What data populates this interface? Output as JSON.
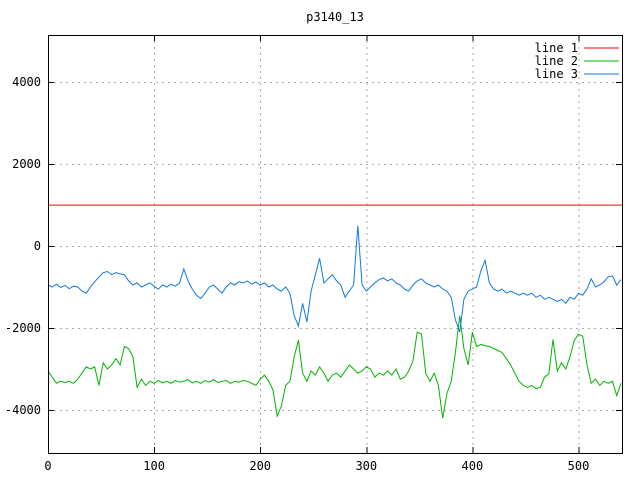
{
  "chart_data": {
    "type": "line",
    "title": "p3140_13",
    "xlabel": "",
    "ylabel": "",
    "xlim": [
      0,
      541
    ],
    "ylim": [
      -5050,
      5150
    ],
    "x_ticks": [
      0,
      100,
      200,
      300,
      400,
      500
    ],
    "y_ticks": [
      -4000,
      -2000,
      0,
      2000,
      4000
    ],
    "grid": true,
    "legend_position": "top-right-inside",
    "x_start": 0,
    "x_step": 4,
    "colors": {
      "background": "#ffffff",
      "border": "#000000",
      "grid": "#aaaaaa",
      "text": "#000000"
    },
    "series": [
      {
        "name": "line 1",
        "color": "#ff0000",
        "constant": 1000
      },
      {
        "name": "line 2",
        "color": "#00b400",
        "values": [
          -3050,
          -3200,
          -3350,
          -3300,
          -3330,
          -3300,
          -3350,
          -3250,
          -3100,
          -2950,
          -3000,
          -2950,
          -3400,
          -2850,
          -3000,
          -2900,
          -2750,
          -2900,
          -2450,
          -2500,
          -2700,
          -3450,
          -3250,
          -3400,
          -3300,
          -3350,
          -3280,
          -3340,
          -3300,
          -3350,
          -3280,
          -3320,
          -3300,
          -3260,
          -3340,
          -3300,
          -3350,
          -3280,
          -3320,
          -3260,
          -3330,
          -3300,
          -3280,
          -3350,
          -3300,
          -3320,
          -3280,
          -3300,
          -3350,
          -3400,
          -3250,
          -3150,
          -3300,
          -3500,
          -4150,
          -3900,
          -3400,
          -3300,
          -2700,
          -2300,
          -3100,
          -3300,
          -3050,
          -3150,
          -2950,
          -3100,
          -3300,
          -3150,
          -3100,
          -3200,
          -3050,
          -2900,
          -3000,
          -3100,
          -3050,
          -2950,
          -3000,
          -3200,
          -3100,
          -3150,
          -3050,
          -3150,
          -3000,
          -3250,
          -3200,
          -3050,
          -2800,
          -2100,
          -2150,
          -3100,
          -3300,
          -3100,
          -3400,
          -4200,
          -3600,
          -3300,
          -2600,
          -1700,
          -2500,
          -2900,
          -2100,
          -2450,
          -2400,
          -2430,
          -2450,
          -2500,
          -2550,
          -2600,
          -2750,
          -2900,
          -3100,
          -3300,
          -3400,
          -3450,
          -3400,
          -3480,
          -3450,
          -3200,
          -3120,
          -2280,
          -3050,
          -2850,
          -3000,
          -2700,
          -2300,
          -2150,
          -2200,
          -2900,
          -3350,
          -3250,
          -3400,
          -3300,
          -3350,
          -3300,
          -3650,
          -3350
        ]
      },
      {
        "name": "line 3",
        "color": "#0f7ae0",
        "values": [
          -950,
          -1000,
          -930,
          -1010,
          -960,
          -1040,
          -980,
          -1000,
          -1100,
          -1150,
          -1000,
          -870,
          -760,
          -650,
          -620,
          -700,
          -650,
          -680,
          -700,
          -850,
          -950,
          -900,
          -1000,
          -950,
          -900,
          -980,
          -1050,
          -950,
          -1000,
          -930,
          -980,
          -900,
          -560,
          -850,
          -1050,
          -1200,
          -1280,
          -1150,
          -1000,
          -950,
          -1050,
          -1150,
          -1000,
          -900,
          -950,
          -870,
          -900,
          -850,
          -930,
          -880,
          -950,
          -900,
          -1000,
          -950,
          -1050,
          -1100,
          -1000,
          -1150,
          -1700,
          -1950,
          -1400,
          -1850,
          -1100,
          -700,
          -300,
          -900,
          -800,
          -700,
          -850,
          -950,
          -1250,
          -1100,
          -950,
          500,
          -950,
          -1100,
          -1000,
          -900,
          -820,
          -780,
          -850,
          -800,
          -900,
          -950,
          -1050,
          -1100,
          -950,
          -850,
          -800,
          -900,
          -950,
          -1000,
          -950,
          -1050,
          -1100,
          -1250,
          -1800,
          -2100,
          -1300,
          -1100,
          -1050,
          -1000,
          -600,
          -350,
          -900,
          -1050,
          -1100,
          -1050,
          -1150,
          -1100,
          -1150,
          -1200,
          -1150,
          -1200,
          -1150,
          -1250,
          -1200,
          -1300,
          -1250,
          -1300,
          -1350,
          -1300,
          -1400,
          -1250,
          -1300,
          -1150,
          -1200,
          -1050,
          -800,
          -1000,
          -950,
          -870,
          -750,
          -730,
          -950,
          -820
        ]
      }
    ]
  }
}
